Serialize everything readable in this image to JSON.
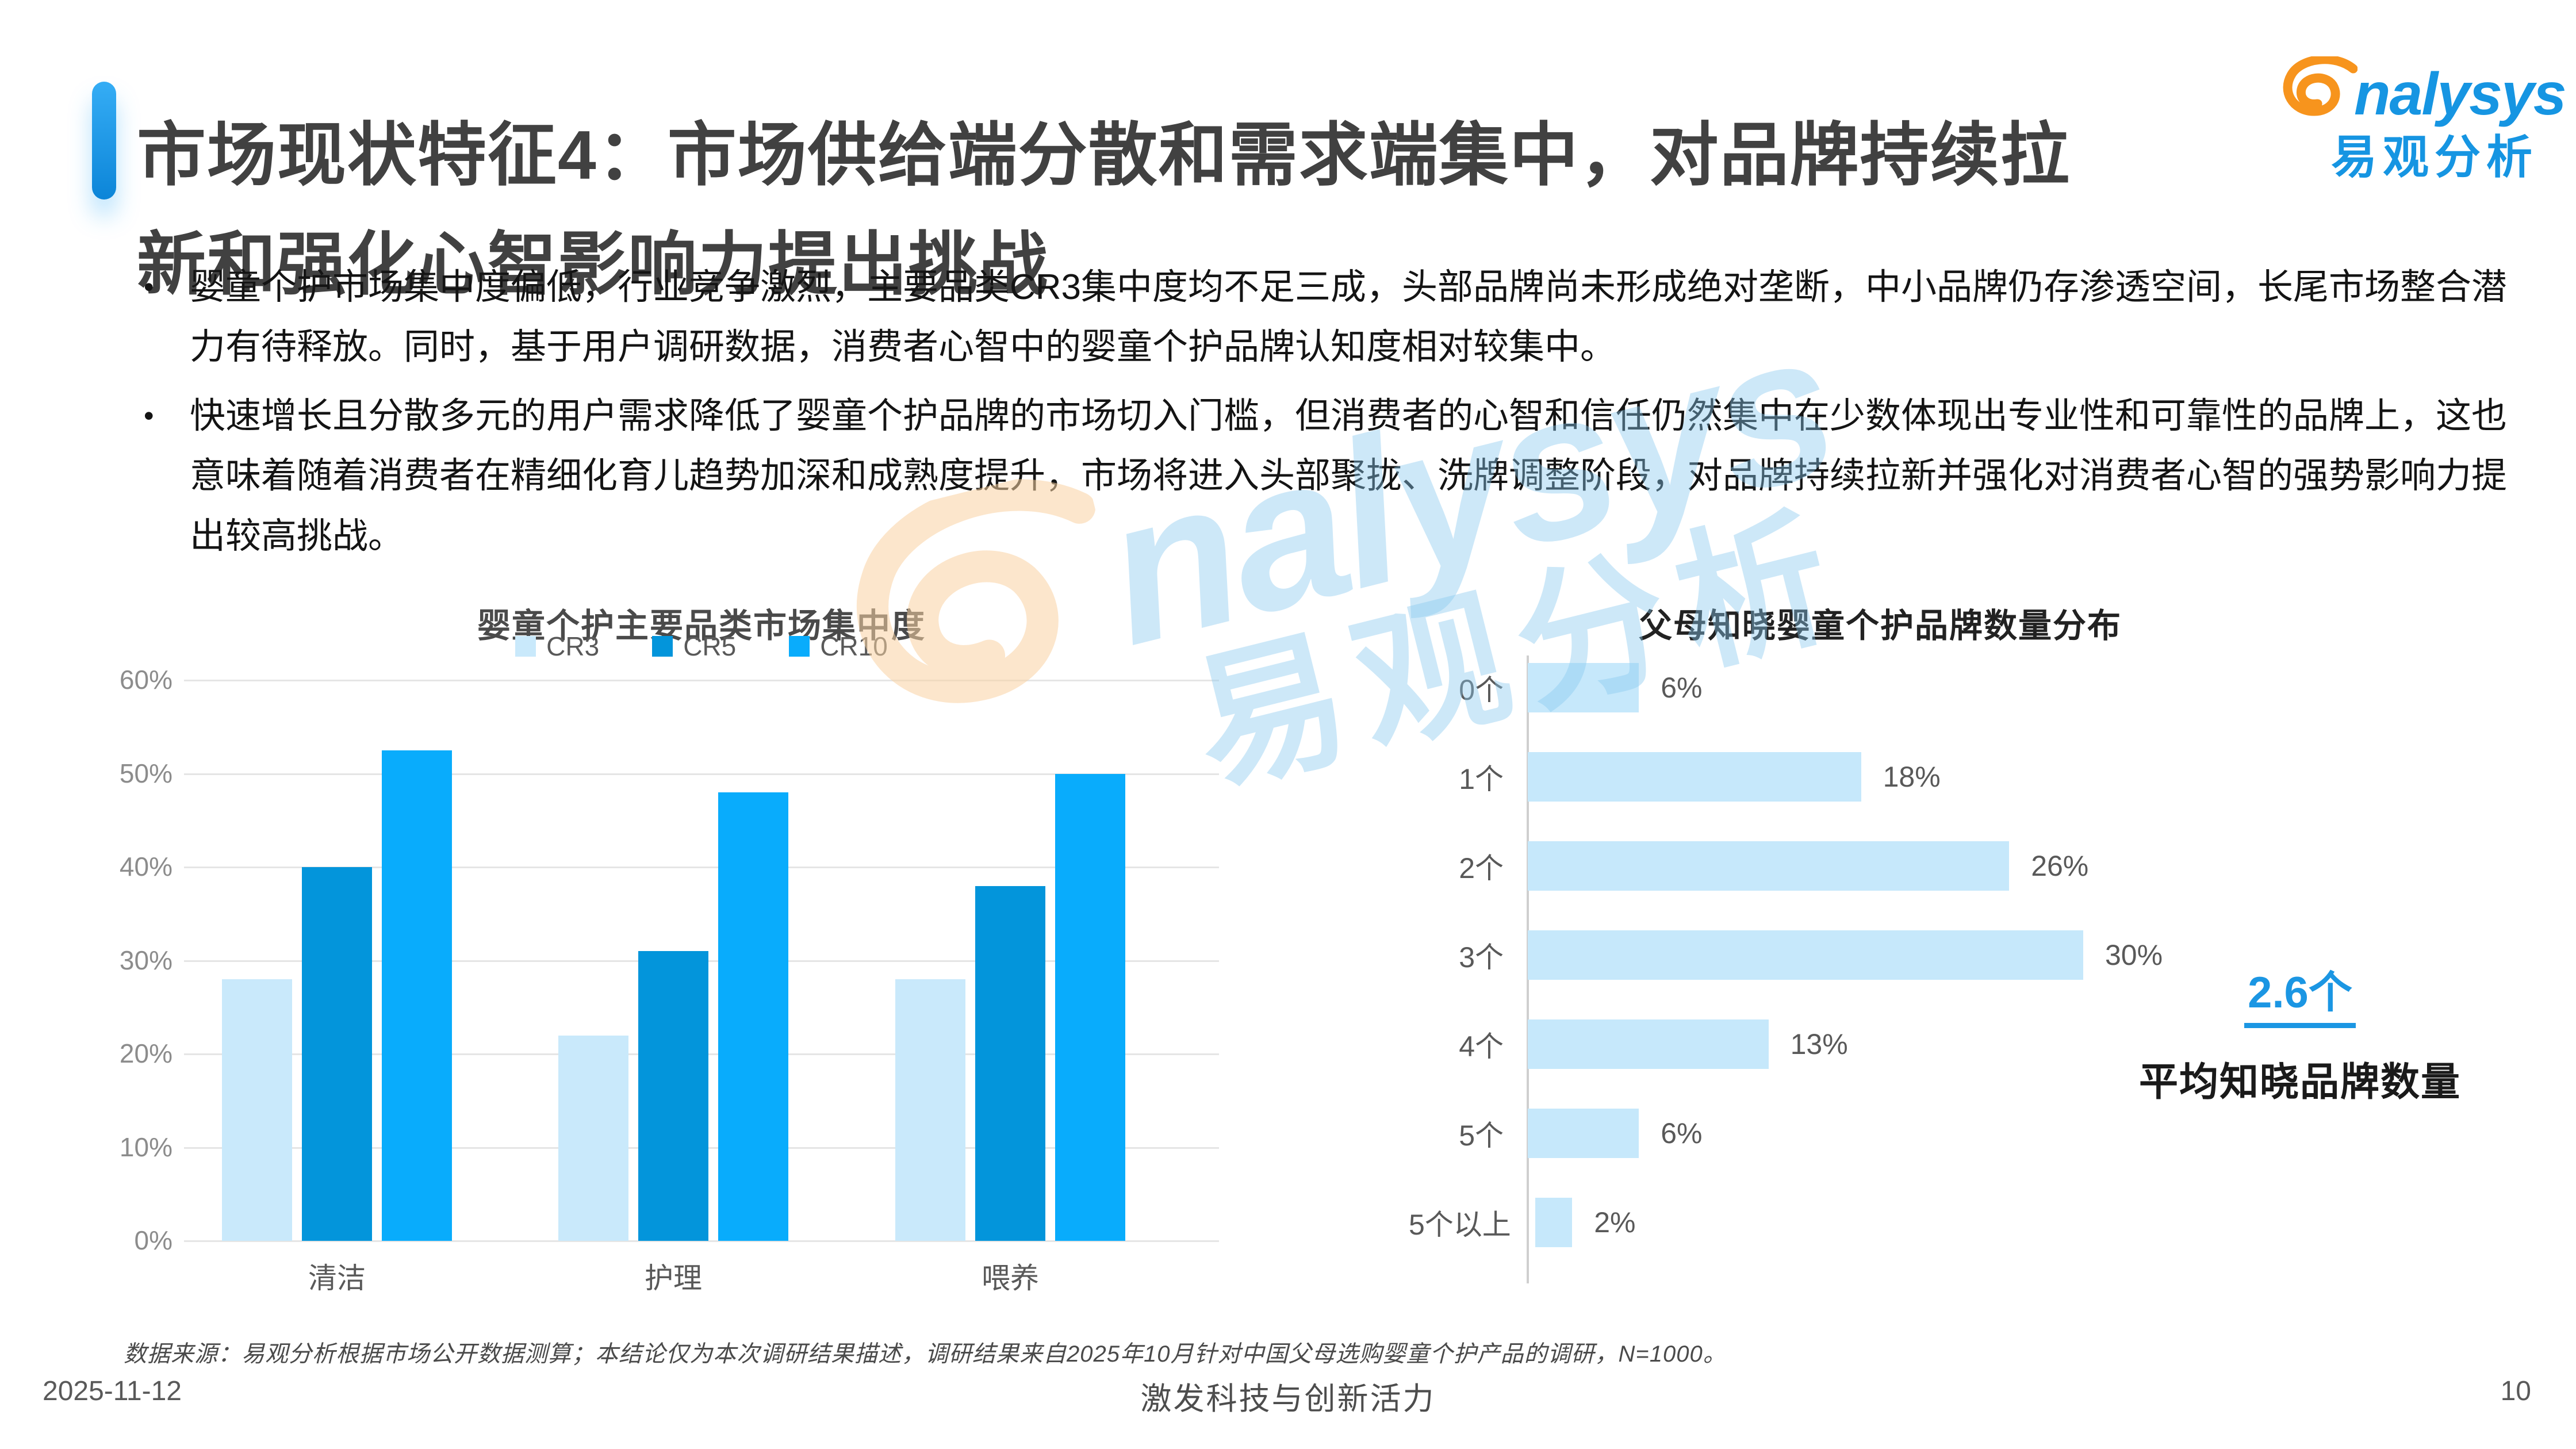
{
  "header": {
    "title_lines": [
      "市场现状特征4：市场供给端分散和需求端集中，对品牌持续拉",
      "新和强化心智影响力提出挑战"
    ],
    "logo": {
      "brand_latin": "nalysys",
      "brand_cn": "易观分析",
      "orange": "#F7941D",
      "blue": "#1695E2"
    }
  },
  "bullets": [
    "婴童个护市场集中度偏低，行业竞争激烈，主要品类CR3集中度均不足三成，头部品牌尚未形成绝对垄断，中小品牌仍存渗透空间，长尾市场整合潜力有待释放。同时，基于用户调研数据，消费者心智中的婴童个护品牌认知度相对较集中。",
    "快速增长且分散多元的用户需求降低了婴童个护品牌的市场切入门槛，但消费者的心智和信任仍然集中在少数体现出专业性和可靠性的品牌上，这也意味着随着消费者在精细化育儿趋势加深和成熟度提升，市场将进入头部聚拢、洗牌调整阶段，对品牌持续拉新并强化对消费者心智的强势影响力提出较高挑战。"
  ],
  "chart_data": [
    {
      "type": "bar",
      "title": "婴童个护主要品类市场集中度",
      "categories": [
        "清洁",
        "护理",
        "喂养"
      ],
      "series": [
        {
          "name": "CR3",
          "color": "#C9E9FB",
          "values": [
            28,
            22,
            28
          ]
        },
        {
          "name": "CR5",
          "color": "#0395DB",
          "values": [
            40,
            31,
            38
          ]
        },
        {
          "name": "CR10",
          "color": "#09ACFC",
          "values": [
            52.5,
            48,
            50
          ]
        }
      ],
      "ylim": [
        0,
        60
      ],
      "yticks": [
        "0%",
        "10%",
        "20%",
        "30%",
        "40%",
        "50%",
        "60%"
      ],
      "grid": "on",
      "legend_position": "top"
    },
    {
      "type": "bar-horizontal",
      "title": "父母知晓婴童个护品牌数量分布",
      "categories": [
        "0个",
        "1个",
        "2个",
        "3个",
        "4个",
        "5个",
        "5个以上"
      ],
      "values": [
        6,
        18,
        26,
        30,
        13,
        6,
        2
      ],
      "value_labels": [
        "6%",
        "18%",
        "26%",
        "30%",
        "13%",
        "6%",
        "2%"
      ],
      "bar_color": "#C6E8FB",
      "xlim": [
        0,
        30
      ],
      "annotation": {
        "value": "2.6个",
        "label": "平均知晓品牌数量",
        "color": "#1B96E3"
      }
    }
  ],
  "watermark": {
    "latin": "nalysys",
    "cn": "易观分析"
  },
  "footnote": "数据来源：易观分析根据市场公开数据测算；本结论仅为本次调研结果描述，调研结果来自2025年10月针对中国父母选购婴童个护产品的调研，N=1000。",
  "footer": {
    "date": "2025-11-12",
    "slogan": "激发科技与创新活力",
    "page": "10"
  }
}
